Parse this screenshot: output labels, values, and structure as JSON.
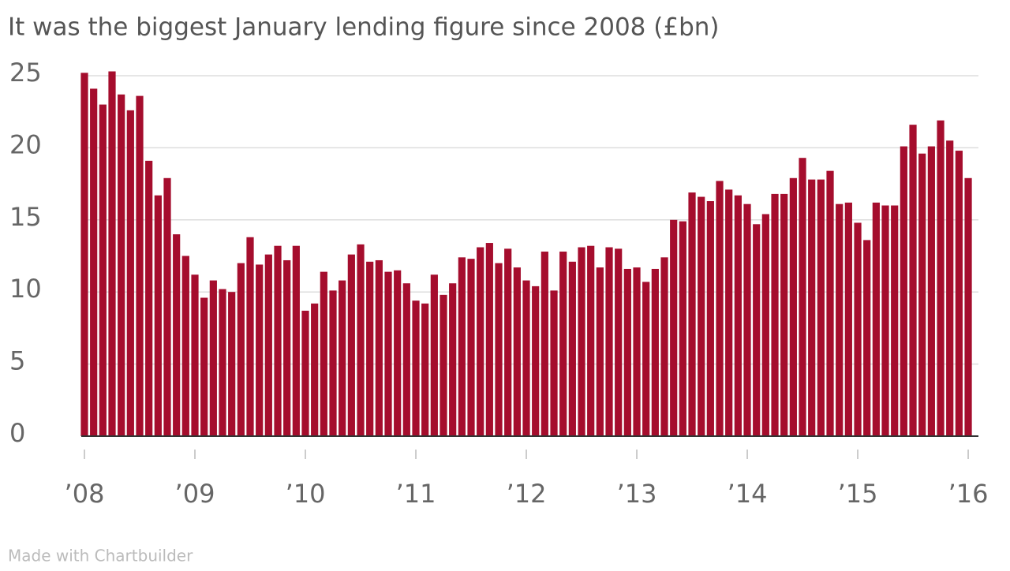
{
  "chart_data": {
    "type": "bar",
    "title": "It was the biggest January lending figure since 2008 (£bn)",
    "footer": "Made with Chartbuilder",
    "color": "#a50d2d",
    "grid": true,
    "ylim": [
      0,
      25
    ],
    "yticks": [
      0,
      5,
      10,
      15,
      20,
      25
    ],
    "categories": [
      "’08",
      null,
      null,
      null,
      null,
      null,
      null,
      null,
      null,
      null,
      null,
      null,
      "’09",
      null,
      null,
      null,
      null,
      null,
      null,
      null,
      null,
      null,
      null,
      null,
      "’10",
      null,
      null,
      null,
      null,
      null,
      null,
      null,
      null,
      null,
      null,
      null,
      "’11",
      null,
      null,
      null,
      null,
      null,
      null,
      null,
      null,
      null,
      null,
      null,
      "’12",
      null,
      null,
      null,
      null,
      null,
      null,
      null,
      null,
      null,
      null,
      null,
      "’13",
      null,
      null,
      null,
      null,
      null,
      null,
      null,
      null,
      null,
      null,
      null,
      "’14",
      null,
      null,
      null,
      null,
      null,
      null,
      null,
      null,
      null,
      null,
      null,
      "’15",
      null,
      null,
      null,
      null,
      null,
      null,
      null,
      null,
      null,
      null,
      null,
      "’16"
    ],
    "values": [
      25.2,
      24.1,
      23.0,
      25.3,
      23.7,
      22.6,
      23.6,
      19.1,
      16.7,
      17.9,
      14.0,
      12.5,
      11.2,
      9.6,
      10.8,
      10.2,
      10.0,
      12.0,
      13.8,
      11.9,
      12.6,
      13.2,
      12.2,
      13.2,
      8.7,
      9.2,
      11.4,
      10.1,
      10.8,
      12.6,
      13.3,
      12.1,
      12.2,
      11.4,
      11.5,
      10.6,
      9.4,
      9.2,
      11.2,
      9.8,
      10.6,
      12.4,
      12.3,
      13.1,
      13.4,
      12.0,
      13.0,
      11.7,
      10.8,
      10.4,
      12.8,
      10.1,
      12.8,
      12.1,
      13.1,
      13.2,
      11.7,
      13.1,
      13.0,
      11.6,
      11.7,
      10.7,
      11.6,
      12.4,
      15.0,
      14.9,
      16.9,
      16.6,
      16.3,
      17.7,
      17.1,
      16.7,
      16.1,
      14.7,
      15.4,
      16.8,
      16.8,
      17.9,
      19.3,
      17.8,
      17.8,
      18.4,
      16.1,
      16.2,
      14.8,
      13.6,
      16.2,
      16.0,
      16.0,
      20.1,
      21.6,
      19.6,
      20.1,
      21.9,
      20.5,
      19.8,
      17.9
    ]
  }
}
